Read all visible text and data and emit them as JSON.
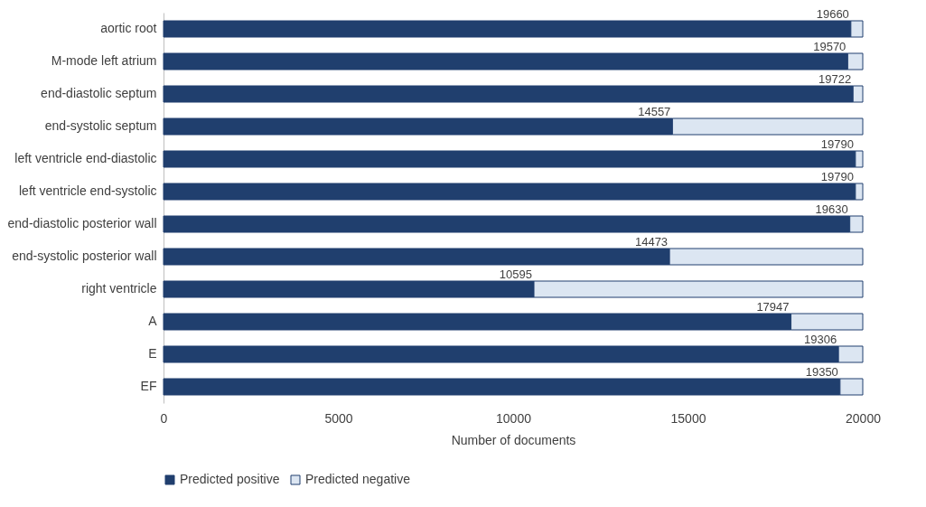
{
  "chart_data": {
    "type": "bar",
    "orientation": "horizontal",
    "stacked": true,
    "xlabel": "Number of documents",
    "categories": [
      "aortic root",
      "M-mode left atrium",
      "end-diastolic septum",
      "end-systolic septum",
      "left ventricle end-diastolic",
      "left ventricle end-systolic",
      "end-diastolic posterior wall",
      "end-systolic posterior wall",
      "right ventricle",
      "A",
      "E",
      "EF"
    ],
    "series": [
      {
        "name": "Predicted positive",
        "color": "#203f6e",
        "values": [
          19660,
          19570,
          19722,
          14557,
          19790,
          19790,
          19630,
          14473,
          10595,
          17947,
          19306,
          19350
        ],
        "value_labels": [
          "19660",
          "19570",
          "19722",
          "14557",
          "19790",
          "19790",
          "19630",
          "14473",
          "10595",
          "17947",
          "19306",
          "19350"
        ]
      },
      {
        "name": "Predicted negative",
        "color": "#dce6f2",
        "values": [
          340,
          430,
          278,
          5443,
          210,
          210,
          370,
          5527,
          9405,
          2053,
          694,
          650
        ]
      }
    ],
    "xlim": [
      0,
      20000
    ],
    "xticks": [
      0,
      5000,
      10000,
      15000,
      20000
    ],
    "grid": false,
    "legend": "bottom"
  }
}
